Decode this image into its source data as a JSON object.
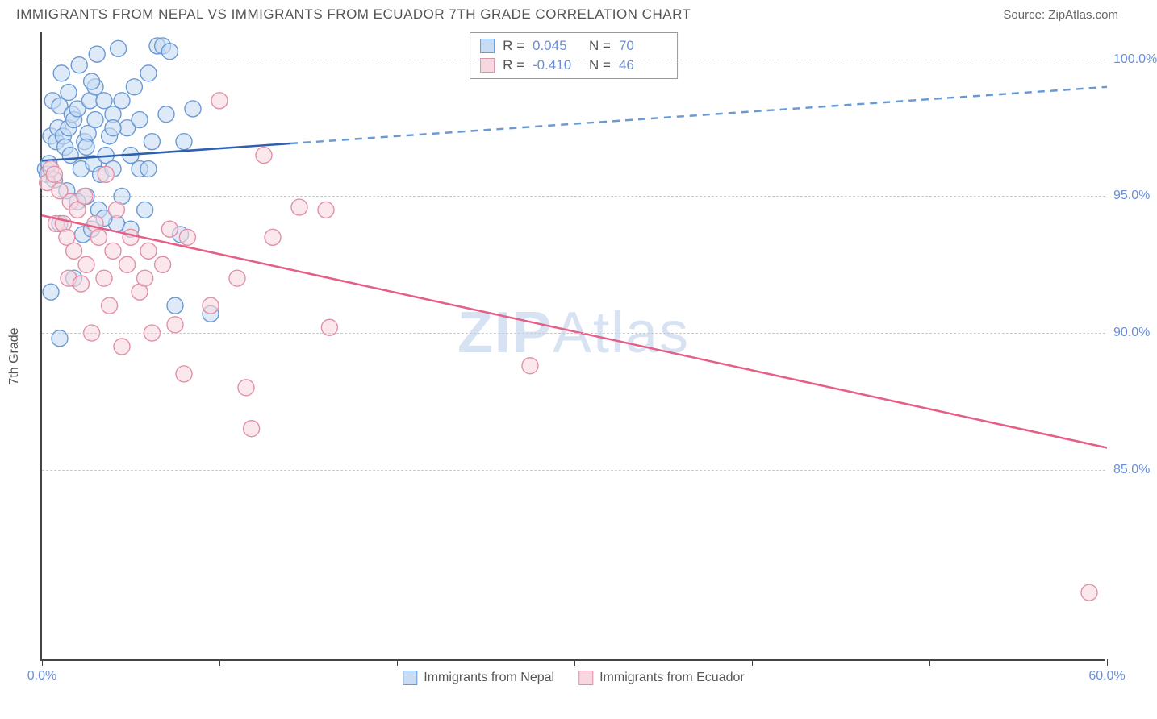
{
  "header": {
    "title": "IMMIGRANTS FROM NEPAL VS IMMIGRANTS FROM ECUADOR 7TH GRADE CORRELATION CHART",
    "source_label": "Source:",
    "source_name": "ZipAtlas.com"
  },
  "watermark": {
    "bold": "ZIP",
    "rest": "Atlas"
  },
  "chart": {
    "type": "scatter",
    "background_color": "#ffffff",
    "grid_color": "#cccccc",
    "axis_color": "#444444",
    "y_axis": {
      "label": "7th Grade",
      "min": 78.0,
      "max": 101.0,
      "ticks": [
        85.0,
        90.0,
        95.0,
        100.0
      ],
      "tick_labels": [
        "85.0%",
        "90.0%",
        "95.0%",
        "100.0%"
      ],
      "label_color": "#555555",
      "tick_label_color": "#6a8fd8",
      "tick_fontsize": 16
    },
    "x_axis": {
      "min": 0.0,
      "max": 60.0,
      "ticks": [
        0,
        10,
        20,
        30,
        40,
        50,
        60
      ],
      "end_labels": {
        "left": "0.0%",
        "right": "60.0%"
      },
      "tick_label_color": "#6a8fd8"
    },
    "series": [
      {
        "name": "Immigrants from Nepal",
        "color_fill": "#c8dcf4",
        "color_stroke": "#6a9ad4",
        "marker_radius": 10,
        "fill_opacity": 0.6,
        "R": "0.045",
        "N": "70",
        "regression": {
          "x1": 0.0,
          "y1": 96.3,
          "x2": 60.0,
          "y2": 99.0,
          "solid_until_x": 14.0,
          "color": "#2e5fb0",
          "dash_color": "#6a9ad4",
          "line_width": 2.5
        },
        "points": [
          [
            0.2,
            96.0
          ],
          [
            0.3,
            95.8
          ],
          [
            0.4,
            96.2
          ],
          [
            0.5,
            97.2
          ],
          [
            0.6,
            98.5
          ],
          [
            0.7,
            95.6
          ],
          [
            0.8,
            97.0
          ],
          [
            0.9,
            97.5
          ],
          [
            1.0,
            98.3
          ],
          [
            1.1,
            99.5
          ],
          [
            1.2,
            97.2
          ],
          [
            1.3,
            96.8
          ],
          [
            1.4,
            95.2
          ],
          [
            1.5,
            97.5
          ],
          [
            1.6,
            96.5
          ],
          [
            1.7,
            98.0
          ],
          [
            1.8,
            97.8
          ],
          [
            2.0,
            98.2
          ],
          [
            2.1,
            99.8
          ],
          [
            2.2,
            96.0
          ],
          [
            2.3,
            93.6
          ],
          [
            2.4,
            97.0
          ],
          [
            2.5,
            95.0
          ],
          [
            2.6,
            97.3
          ],
          [
            2.7,
            98.5
          ],
          [
            2.8,
            93.8
          ],
          [
            2.9,
            96.2
          ],
          [
            3.0,
            97.8
          ],
          [
            3.1,
            100.2
          ],
          [
            3.2,
            94.5
          ],
          [
            3.3,
            95.8
          ],
          [
            3.5,
            98.5
          ],
          [
            3.6,
            96.5
          ],
          [
            3.8,
            97.2
          ],
          [
            4.0,
            98.0
          ],
          [
            4.2,
            94.0
          ],
          [
            4.3,
            100.4
          ],
          [
            4.5,
            95.0
          ],
          [
            4.8,
            97.5
          ],
          [
            5.0,
            93.8
          ],
          [
            5.2,
            99.0
          ],
          [
            5.5,
            96.0
          ],
          [
            5.8,
            94.5
          ],
          [
            6.0,
            99.5
          ],
          [
            6.2,
            97.0
          ],
          [
            6.5,
            100.5
          ],
          [
            1.0,
            89.8
          ],
          [
            6.8,
            100.5
          ],
          [
            7.0,
            98.0
          ],
          [
            7.2,
            100.3
          ],
          [
            7.5,
            91.0
          ],
          [
            7.8,
            93.6
          ],
          [
            8.0,
            97.0
          ],
          [
            8.5,
            98.2
          ],
          [
            9.5,
            90.7
          ],
          [
            5.0,
            96.5
          ],
          [
            4.0,
            96.0
          ],
          [
            3.0,
            99.0
          ],
          [
            2.0,
            94.8
          ],
          [
            1.5,
            98.8
          ],
          [
            2.8,
            99.2
          ],
          [
            3.5,
            94.2
          ],
          [
            4.5,
            98.5
          ],
          [
            5.5,
            97.8
          ],
          [
            1.0,
            94.0
          ],
          [
            0.5,
            91.5
          ],
          [
            1.8,
            92.0
          ],
          [
            6.0,
            96.0
          ],
          [
            2.5,
            96.8
          ],
          [
            4.0,
            97.5
          ]
        ]
      },
      {
        "name": "Immigrants from Ecuador",
        "color_fill": "#f8d8e0",
        "color_stroke": "#e090a8",
        "marker_radius": 10,
        "fill_opacity": 0.6,
        "R": "-0.410",
        "N": "46",
        "regression": {
          "x1": 0.0,
          "y1": 94.3,
          "x2": 60.0,
          "y2": 85.8,
          "solid_until_x": 60.0,
          "color": "#e65e85",
          "dash_color": "#e65e85",
          "line_width": 2.5
        },
        "points": [
          [
            0.3,
            95.5
          ],
          [
            0.5,
            96.0
          ],
          [
            0.7,
            95.8
          ],
          [
            0.8,
            94.0
          ],
          [
            1.0,
            95.2
          ],
          [
            1.2,
            94.0
          ],
          [
            1.4,
            93.5
          ],
          [
            1.5,
            92.0
          ],
          [
            1.6,
            94.8
          ],
          [
            1.8,
            93.0
          ],
          [
            2.0,
            94.5
          ],
          [
            2.2,
            91.8
          ],
          [
            2.4,
            95.0
          ],
          [
            2.5,
            92.5
          ],
          [
            2.8,
            90.0
          ],
          [
            3.0,
            94.0
          ],
          [
            3.2,
            93.5
          ],
          [
            3.5,
            92.0
          ],
          [
            3.6,
            95.8
          ],
          [
            3.8,
            91.0
          ],
          [
            4.0,
            93.0
          ],
          [
            4.2,
            94.5
          ],
          [
            4.5,
            89.5
          ],
          [
            4.8,
            92.5
          ],
          [
            5.0,
            93.5
          ],
          [
            5.5,
            91.5
          ],
          [
            5.8,
            92.0
          ],
          [
            6.0,
            93.0
          ],
          [
            6.2,
            90.0
          ],
          [
            6.8,
            92.5
          ],
          [
            7.2,
            93.8
          ],
          [
            7.5,
            90.3
          ],
          [
            8.0,
            88.5
          ],
          [
            8.2,
            93.5
          ],
          [
            9.5,
            91.0
          ],
          [
            10.0,
            98.5
          ],
          [
            11.0,
            92.0
          ],
          [
            11.5,
            88.0
          ],
          [
            12.5,
            96.5
          ],
          [
            13.0,
            93.5
          ],
          [
            14.5,
            94.6
          ],
          [
            16.0,
            94.5
          ],
          [
            16.2,
            90.2
          ],
          [
            11.8,
            86.5
          ],
          [
            27.5,
            88.8
          ],
          [
            59.0,
            80.5
          ]
        ]
      }
    ],
    "legend_bottom": [
      {
        "label": "Immigrants from Nepal",
        "fill": "#c8dcf4",
        "stroke": "#6a9ad4"
      },
      {
        "label": "Immigrants from Ecuador",
        "fill": "#f8d8e0",
        "stroke": "#e090a8"
      }
    ],
    "stats_labels": {
      "R": "R =",
      "N": "N ="
    }
  }
}
